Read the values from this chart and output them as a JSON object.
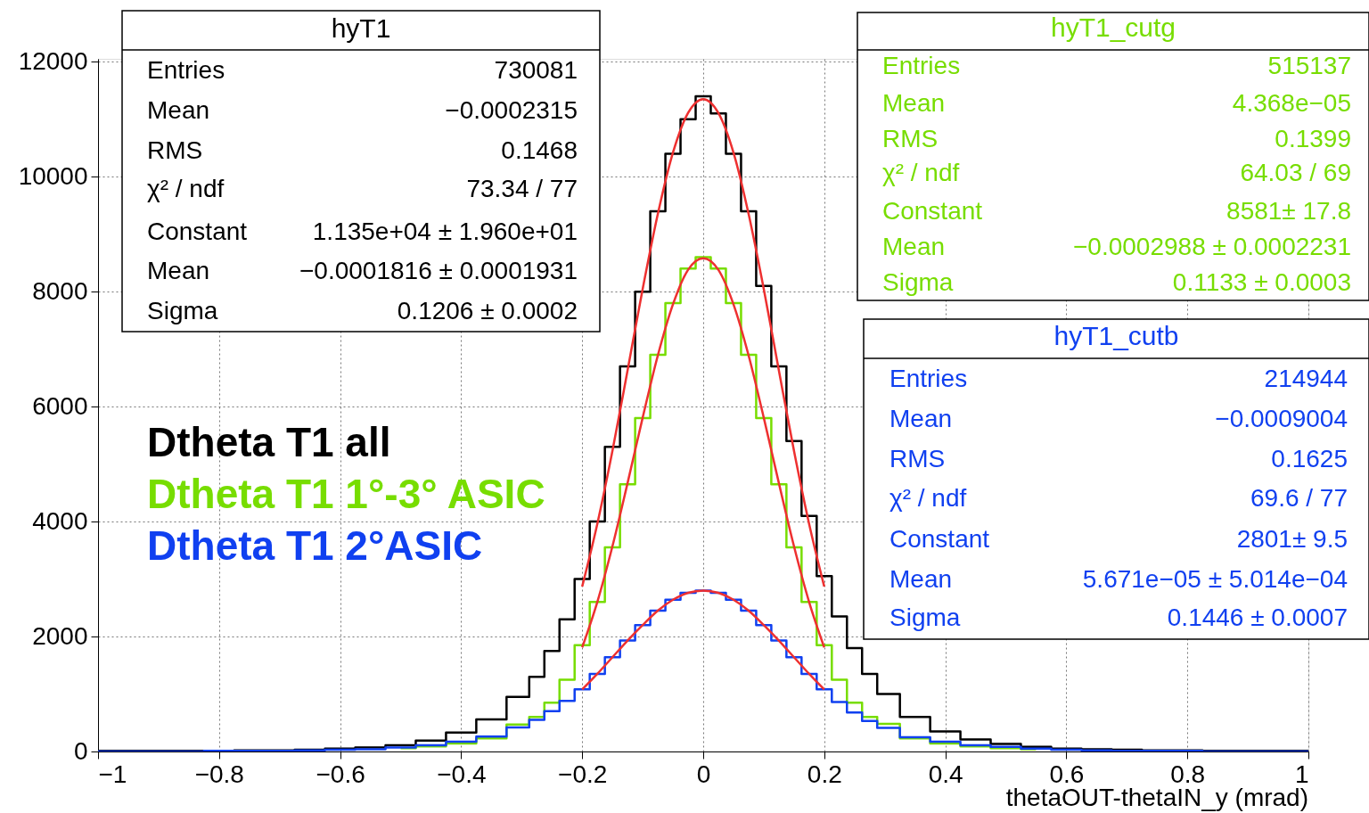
{
  "chart_data": {
    "type": "step",
    "xlabel": "thetaOUT-thetaIN_y (mrad)",
    "xlim": [
      -1,
      1
    ],
    "ylim": [
      0,
      12050
    ],
    "xticks": [
      -1,
      -0.8,
      -0.6,
      -0.4,
      -0.2,
      0,
      0.2,
      0.4,
      0.6,
      0.8,
      1
    ],
    "yticks": [
      0,
      2000,
      4000,
      6000,
      8000,
      10000,
      12000
    ],
    "grid": true,
    "legend": "left",
    "x": [
      -1,
      -0.95,
      -0.9,
      -0.85,
      -0.8,
      -0.75,
      -0.7,
      -0.65,
      -0.6,
      -0.55,
      -0.5,
      -0.45,
      -0.4,
      -0.35,
      -0.3,
      -0.275,
      -0.25,
      -0.225,
      -0.2,
      -0.175,
      -0.15,
      -0.125,
      -0.1,
      -0.075,
      -0.05,
      -0.025,
      0,
      0.025,
      0.05,
      0.075,
      0.1,
      0.125,
      0.15,
      0.175,
      0.2,
      0.225,
      0.25,
      0.275,
      0.3,
      0.35,
      0.4,
      0.45,
      0.5,
      0.55,
      0.6,
      0.65,
      0.7,
      0.75,
      0.8,
      0.85,
      0.9,
      0.95,
      1
    ],
    "series": [
      {
        "name": "Dtheta T1 all",
        "color": "#000000",
        "values": [
          10,
          10,
          10,
          10,
          10,
          20,
          20,
          30,
          50,
          70,
          110,
          190,
          330,
          560,
          950,
          1300,
          1750,
          2300,
          3000,
          4000,
          5300,
          6700,
          8000,
          9400,
          10400,
          11000,
          11400,
          11100,
          10400,
          9400,
          8100,
          6700,
          5400,
          4100,
          3050,
          2350,
          1800,
          1350,
          1000,
          600,
          350,
          210,
          130,
          80,
          50,
          40,
          30,
          20,
          20,
          10,
          10,
          10,
          10
        ]
      },
      {
        "name": "Dtheta T1 1°-3° ASIC",
        "color": "#77dd00",
        "values": [
          null,
          null,
          null,
          null,
          null,
          null,
          null,
          null,
          null,
          null,
          60,
          90,
          140,
          230,
          470,
          600,
          850,
          1250,
          1850,
          2600,
          3550,
          4650,
          5800,
          6900,
          7800,
          8400,
          8600,
          8400,
          7800,
          6900,
          5800,
          4650,
          3550,
          2600,
          1850,
          1250,
          850,
          600,
          480,
          230,
          140,
          90,
          60,
          40,
          null,
          null,
          null,
          null,
          null,
          null,
          null,
          null,
          null
        ]
      },
      {
        "name": "Dtheta T1 2°ASIC",
        "color": "#1040f0",
        "values": [
          0,
          0,
          0,
          0,
          10,
          10,
          10,
          20,
          30,
          40,
          70,
          110,
          170,
          260,
          420,
          550,
          700,
          880,
          1080,
          1350,
          1640,
          1930,
          2200,
          2450,
          2640,
          2760,
          2800,
          2760,
          2640,
          2450,
          2200,
          1930,
          1640,
          1350,
          1080,
          860,
          680,
          530,
          410,
          250,
          170,
          110,
          80,
          50,
          30,
          20,
          10,
          10,
          10,
          0,
          0,
          0,
          0
        ]
      },
      {
        "color": "#ee3030",
        "type": "line",
        "x": [
          -0.2,
          -0.175,
          -0.15,
          -0.125,
          -0.1,
          -0.075,
          -0.05,
          -0.025,
          0,
          0.025,
          0.05,
          0.075,
          0.1,
          0.125,
          0.15,
          0.175,
          0.2
        ],
        "values": [
          2870,
          3960,
          5230,
          6630,
          8050,
          9350,
          10420,
          11110,
          11350,
          11110,
          10420,
          9350,
          8050,
          6630,
          5230,
          3960,
          2870
        ]
      },
      {
        "color": "#ee3030",
        "type": "line",
        "x": [
          -0.2,
          -0.175,
          -0.15,
          -0.125,
          -0.1,
          -0.075,
          -0.05,
          -0.025,
          0,
          0.025,
          0.05,
          0.075,
          0.1,
          0.125,
          0.15,
          0.175,
          0.2
        ],
        "values": [
          1810,
          2600,
          3570,
          4670,
          5810,
          6890,
          7780,
          8380,
          8580,
          8380,
          7780,
          6890,
          5810,
          4670,
          3570,
          2600,
          1810
        ]
      },
      {
        "color": "#ee3030",
        "type": "line",
        "x": [
          -0.2,
          -0.175,
          -0.15,
          -0.125,
          -0.1,
          -0.075,
          -0.05,
          -0.025,
          0,
          0.025,
          0.05,
          0.075,
          0.1,
          0.125,
          0.15,
          0.175,
          0.2
        ],
        "values": [
          1080,
          1350,
          1640,
          1930,
          2200,
          2450,
          2640,
          2760,
          2800,
          2760,
          2640,
          2450,
          2200,
          1930,
          1640,
          1350,
          1080
        ]
      }
    ],
    "annotations": [
      "hyT1",
      "Entries",
      "730081",
      "Mean",
      "−0.0002315",
      "RMS",
      "0.1468",
      "χ² / ndf",
      "73.34 / 77",
      "Constant",
      "1.135e+04 ± 1.960e+01",
      "Mean",
      "−0.0001816 ± 0.0001931",
      "Sigma",
      "0.1206 ± 0.0002",
      "hyT1_cutg",
      "Entries",
      "515137",
      "Mean",
      "4.368e−05",
      "RMS",
      "0.1399",
      "χ² / ndf",
      "64.03 / 69",
      "Constant",
      "8581± 17.8",
      "Mean",
      "−0.0002988 ± 0.0002231",
      "Sigma",
      "0.1133 ± 0.0003",
      "hyT1_cutb",
      "Entries",
      "214944",
      "Mean",
      "−0.0009004",
      "RMS",
      "0.1625",
      "χ² / ndf",
      "69.6 / 77",
      "Constant",
      "2801± 9.5",
      "Mean",
      "5.671e−05 ± 5.014e−04",
      "Sigma",
      "0.1446 ± 0.0007"
    ]
  }
}
